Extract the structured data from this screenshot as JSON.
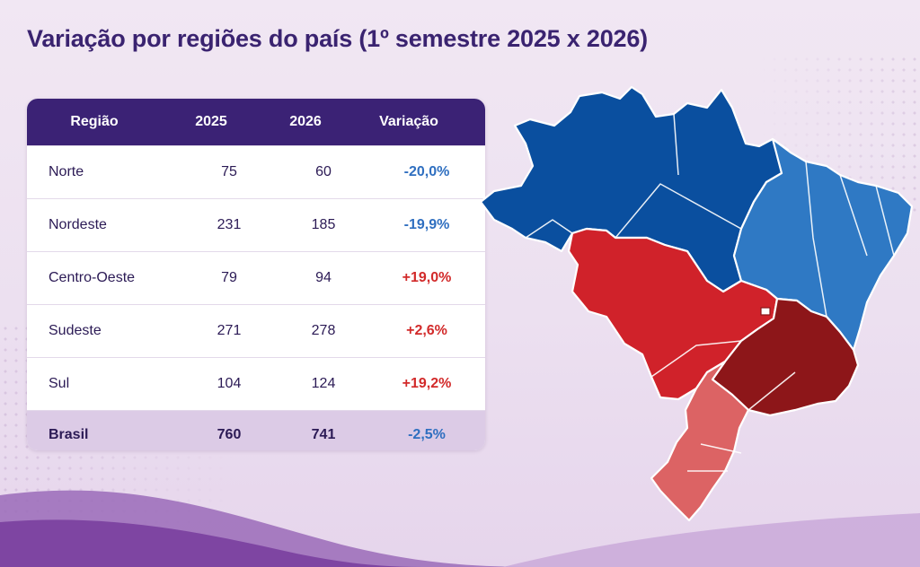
{
  "title": "Variação por regiões do país (1º semestre 2025 x 2026)",
  "table": {
    "headers": [
      "Região",
      "2025",
      "2026",
      "Variação"
    ],
    "rows": [
      {
        "region": "Norte",
        "y2025": "75",
        "y2026": "60",
        "variation": "-20,0%",
        "trend": "negative"
      },
      {
        "region": "Nordeste",
        "y2025": "231",
        "y2026": "185",
        "variation": "-19,9%",
        "trend": "negative"
      },
      {
        "region": "Centro-Oeste",
        "y2025": "79",
        "y2026": "94",
        "variation": "+19,0%",
        "trend": "positive"
      },
      {
        "region": "Sudeste",
        "y2025": "271",
        "y2026": "278",
        "variation": "+2,6%",
        "trend": "positive"
      },
      {
        "region": "Sul",
        "y2025": "104",
        "y2026": "124",
        "variation": "+19,2%",
        "trend": "positive"
      }
    ],
    "total": {
      "region": "Brasil",
      "y2025": "760",
      "y2026": "741",
      "variation": "-2,5%",
      "trend": "negative"
    }
  },
  "colors": {
    "header_bg": "#3b2275",
    "negative_text": "#2f6fc0",
    "positive_text": "#d22a2a",
    "norte": "#0a4f9f",
    "nordeste": "#2f79c4",
    "centro_oeste": "#d0222a",
    "sudeste": "#8d1619",
    "sul": "#dc6364"
  }
}
